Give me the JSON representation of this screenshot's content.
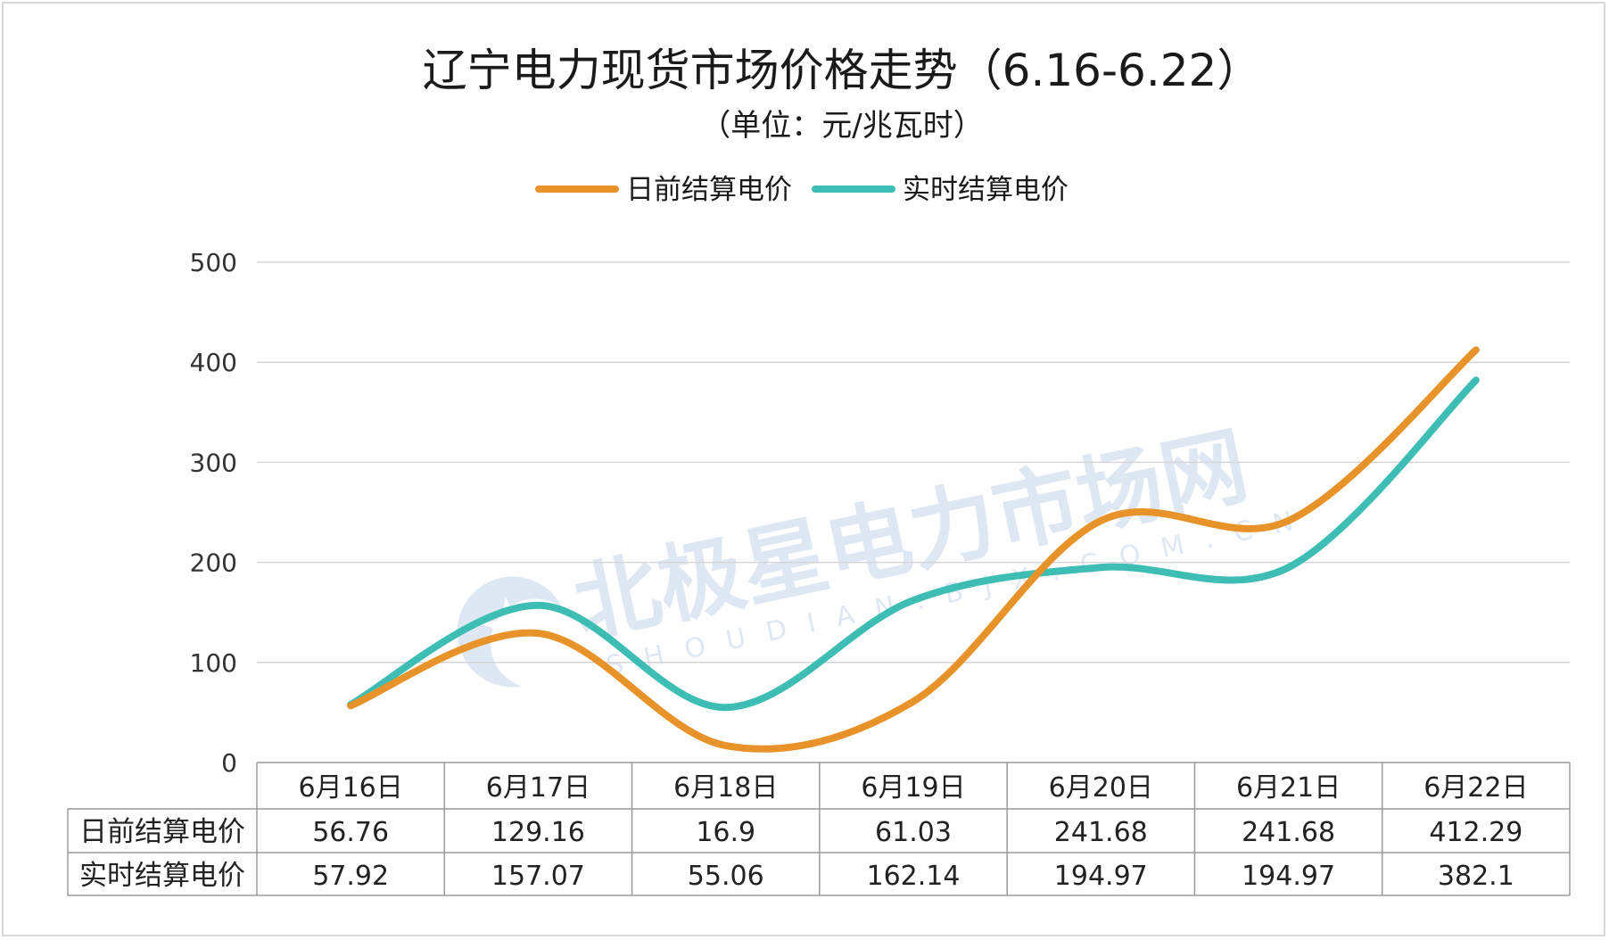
{
  "chart_data": {
    "type": "line",
    "title": "辽宁电力现货市场价格走势（6.16-6.22）",
    "subtitle": "（单位：元/兆瓦时）",
    "categories": [
      "6月16日",
      "6月17日",
      "6月18日",
      "6月19日",
      "6月20日",
      "6月21日",
      "6月22日"
    ],
    "series": [
      {
        "name": "日前结算电价",
        "color": "#E8922A",
        "values": [
          56.76,
          129.16,
          16.9,
          61.03,
          241.68,
          241.68,
          412.29
        ]
      },
      {
        "name": "实时结算电价",
        "color": "#3DBDB3",
        "values": [
          57.92,
          157.07,
          55.06,
          162.14,
          194.97,
          194.97,
          382.1
        ]
      }
    ],
    "value_labels": [
      [
        "56.76",
        "129.16",
        "16.9",
        "61.03",
        "241.68",
        "241.68",
        "412.29"
      ],
      [
        "57.92",
        "157.07",
        "55.06",
        "162.14",
        "194.97",
        "194.97",
        "382.1"
      ]
    ],
    "ylim": [
      0,
      500
    ],
    "yticks": [
      0,
      100,
      200,
      300,
      400,
      500
    ],
    "grid": true,
    "legend_position": "top-center",
    "data_table": true
  },
  "watermark": {
    "text": "北极星电力市场网",
    "subtext": "SHOUDIAN.BJX.COM.CN",
    "logo": "polaris-star-logo"
  }
}
